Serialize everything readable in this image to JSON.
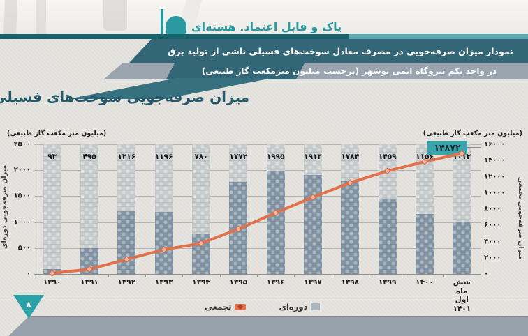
{
  "header": {
    "slogan": "پاک و قابل اعتماد. هسته‌ای",
    "banner_line1": "نمودار میزان صرفه‌جویی در مصرف معادل سوخت‌های فسیلی ناشی از تولید برق",
    "banner_line2": "در واحد یکم نیروگاه اتمی بوشهر (برحسب میلیون مترمکعب گاز طبیعی)"
  },
  "chart": {
    "title": "میزان صرفه‌جویی سوخت‌های فسیلی",
    "left_unit": "(میلیون متر مکعب گاز طبیعی)",
    "right_unit": "(میلیون متر مکعب گاز طبیعی)",
    "left_axis_label": "میزان صرفه‌جویی دوره‌ای",
    "right_axis_label": "میزان صرفه‌جویی تجمعی",
    "badge_value": "۱۴۸۷۲",
    "left_ticks": [
      "۲۵۰۰",
      "۲۰۰۰",
      "۱۵۰۰",
      "۱۰۰۰",
      "۵۰۰",
      "۰"
    ],
    "right_ticks": [
      "۱۶۰۰۰",
      "۱۴۰۰۰",
      "۱۲۰۰۰",
      "۱۰۰۰۰",
      "۸۰۰۰",
      "۶۰۰۰",
      "۴۰۰۰",
      "۲۰۰۰",
      "۰"
    ],
    "bar_labels": [
      "۹۳",
      "۴۹۵",
      "۱۲۱۶",
      "۱۱۹۶",
      "۷۸۰",
      "۱۷۷۲",
      "۱۹۹۵",
      "۱۹۱۳",
      "۱۷۸۴",
      "۱۴۵۹",
      "۱۱۵۶",
      "۱۰۱۳"
    ],
    "x_labels": [
      "۱۳۹۰",
      "۱۳۹۱",
      "۱۳۹۲",
      "۱۳۹۳",
      "۱۳۹۴",
      "۱۳۹۵",
      "۱۳۹۶",
      "۱۳۹۷",
      "۱۳۹۸",
      "۱۳۹۹",
      "۱۴۰۰",
      "شش ماه اول\n۱۴۰۱"
    ],
    "legend": {
      "cumulative": "تجمعی",
      "periodic": "دوره‌ای"
    }
  },
  "chart_data": {
    "type": "bar",
    "title": "میزان صرفه‌جویی سوخت‌های فسیلی",
    "subtitle": "نمودار میزان صرفه‌جویی در مصرف معادل سوخت‌های فسیلی ناشی از تولید برق در واحد یکم نیروگاه اتمی بوشهر (برحسب میلیون مترمکعب گاز طبیعی)",
    "categories": [
      "1390",
      "1391",
      "1392",
      "1393",
      "1394",
      "1395",
      "1396",
      "1397",
      "1398",
      "1399",
      "1400",
      "شش ماه اول 1401"
    ],
    "series": [
      {
        "name": "دوره‌ای",
        "type": "bar",
        "axis": "left",
        "values": [
          93,
          495,
          1216,
          1196,
          780,
          1772,
          1995,
          1913,
          1784,
          1459,
          1156,
          1013
        ]
      },
      {
        "name": "تجمعی",
        "type": "line",
        "axis": "right",
        "values": [
          93,
          588,
          1804,
          3000,
          3780,
          5552,
          7547,
          9460,
          11244,
          12703,
          13859,
          14872
        ]
      }
    ],
    "left_axis": {
      "label": "میزان صرفه‌جویی دوره‌ای",
      "unit": "میلیون متر مکعب گاز طبیعی",
      "range": [
        0,
        2500
      ],
      "tick_step": 500
    },
    "right_axis": {
      "label": "میزان صرفه‌جویی تجمعی",
      "unit": "میلیون متر مکعب گاز طبیعی",
      "range": [
        0,
        16000
      ],
      "tick_step": 2000
    },
    "annotations": [
      {
        "text": "۱۴۸۷۲",
        "value": 14872,
        "series": "تجمعی",
        "category": "شش ماه اول 1401"
      }
    ],
    "grid": true,
    "legend_position": "bottom"
  },
  "footer": {
    "page_number": "۸"
  },
  "colors": {
    "accent_teal": "#2b9aa0",
    "banner_teal": "#336677",
    "banner_gray": "#9aa5af",
    "bar_periodic": "#8294a3",
    "bar_track": "#c7cacb",
    "line_cumulative": "#e1714a",
    "marker_fill": "#f4b59c",
    "marker_stroke": "#d96540",
    "badge_bg": "#3aa6ab",
    "footer_gray": "#96a1ab"
  }
}
